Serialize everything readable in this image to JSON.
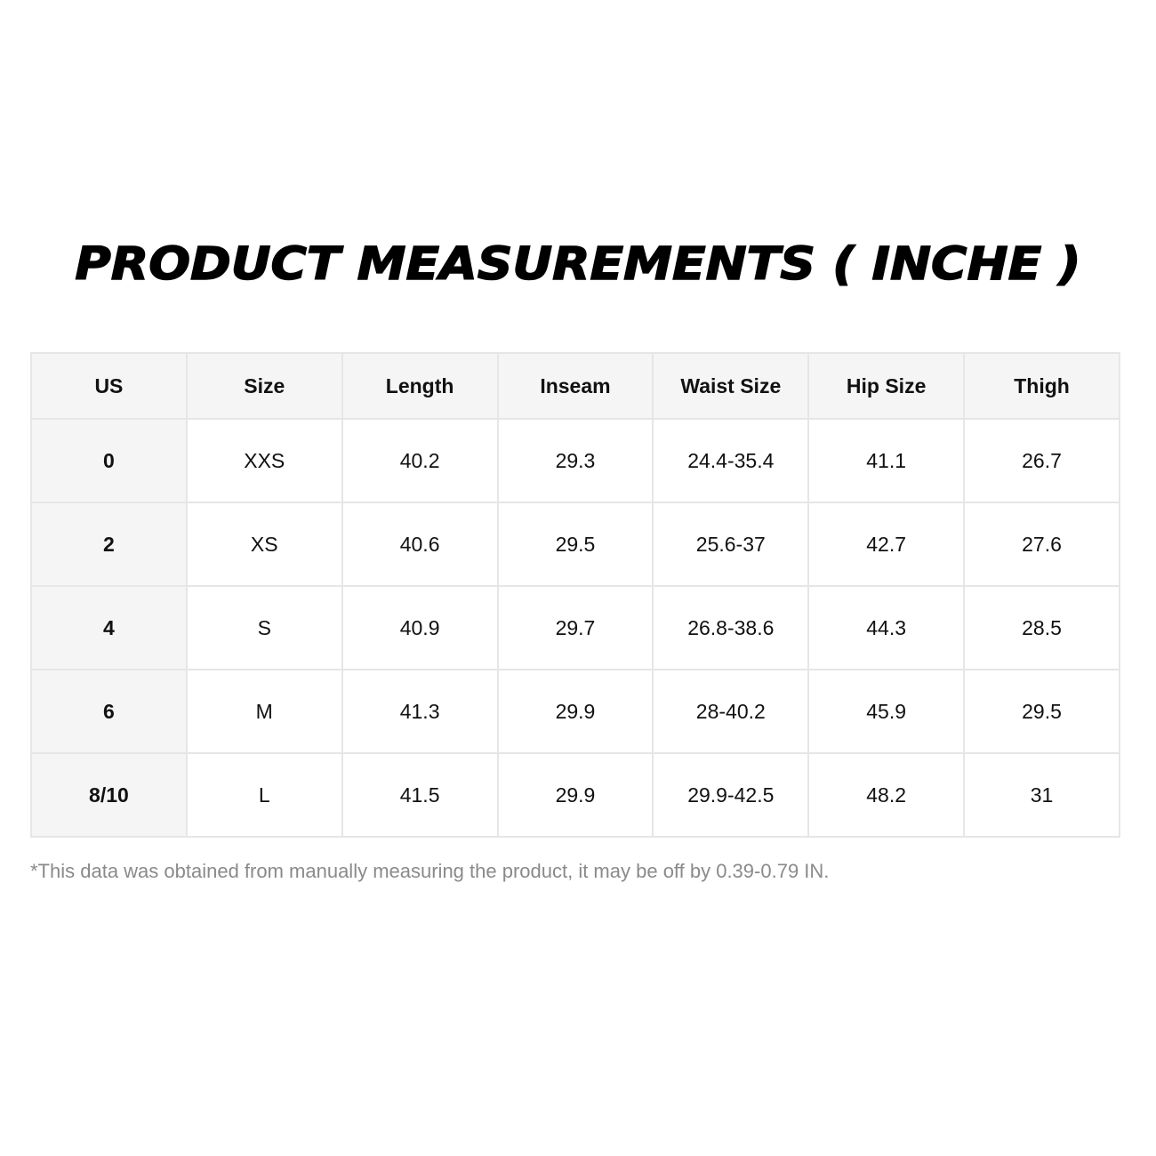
{
  "title": "PRODUCT MEASUREMENTS ( INCHE )",
  "table": {
    "headers": [
      "US",
      "Size",
      "Length",
      "Inseam",
      "Waist Size",
      "Hip Size",
      "Thigh"
    ],
    "rows": [
      [
        "0",
        "XXS",
        "40.2",
        "29.3",
        "24.4-35.4",
        "41.1",
        "26.7"
      ],
      [
        "2",
        "XS",
        "40.6",
        "29.5",
        "25.6-37",
        "42.7",
        "27.6"
      ],
      [
        "4",
        "S",
        "40.9",
        "29.7",
        "26.8-38.6",
        "44.3",
        "28.5"
      ],
      [
        "6",
        "M",
        "41.3",
        "29.9",
        "28-40.2",
        "45.9",
        "29.5"
      ],
      [
        "8/10",
        "L",
        "41.5",
        "29.9",
        "29.9-42.5",
        "48.2",
        "31"
      ]
    ]
  },
  "note": "*This data was obtained from manually measuring the product, it may be off by 0.39-0.79 IN."
}
